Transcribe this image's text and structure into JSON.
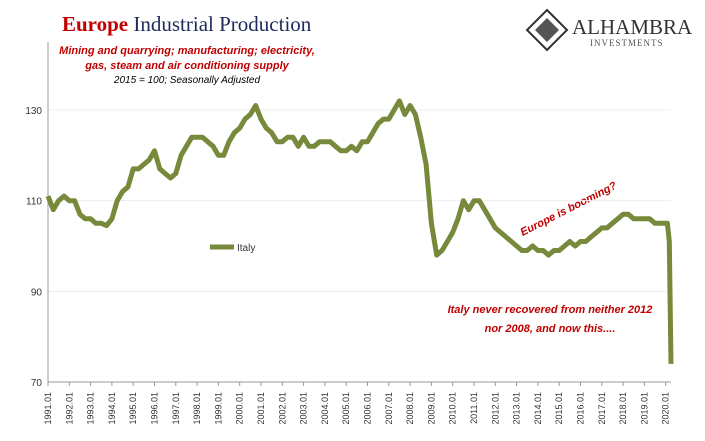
{
  "chart_data": {
    "type": "line",
    "title_highlight": "Europe",
    "title": "Industrial Production",
    "subtitle": [
      "Mining and quarrying; manufacturing; electricity,",
      "gas, steam and air conditioning supply"
    ],
    "note": "2015 = 100; Seasonally Adjusted",
    "logo": {
      "name": "ALHAMBRA",
      "tagline": "INVESTMENTS"
    },
    "annotations": [
      "Europe is booming?",
      "Italy never recovered from neither 2012",
      "nor 2008, and now this...."
    ],
    "x": [
      1991,
      1991.25,
      1991.5,
      1991.75,
      1992,
      1992.25,
      1992.5,
      1992.75,
      1993,
      1993.25,
      1993.5,
      1993.75,
      1994,
      1994.25,
      1994.5,
      1994.75,
      1995,
      1995.25,
      1995.5,
      1995.75,
      1996,
      1996.25,
      1996.5,
      1996.75,
      1997,
      1997.25,
      1997.5,
      1997.75,
      1998,
      1998.25,
      1998.5,
      1998.75,
      1999,
      1999.25,
      1999.5,
      1999.75,
      2000,
      2000.25,
      2000.5,
      2000.75,
      2001,
      2001.25,
      2001.5,
      2001.75,
      2002,
      2002.25,
      2002.5,
      2002.75,
      2003,
      2003.25,
      2003.5,
      2003.75,
      2004,
      2004.25,
      2004.5,
      2004.75,
      2005,
      2005.25,
      2005.5,
      2005.75,
      2006,
      2006.25,
      2006.5,
      2006.75,
      2007,
      2007.25,
      2007.5,
      2007.75,
      2008,
      2008.25,
      2008.5,
      2008.75,
      2009,
      2009.25,
      2009.5,
      2009.75,
      2010,
      2010.25,
      2010.5,
      2010.75,
      2011,
      2011.25,
      2011.5,
      2011.75,
      2012,
      2012.25,
      2012.5,
      2012.75,
      2013,
      2013.25,
      2013.5,
      2013.75,
      2014,
      2014.25,
      2014.5,
      2014.75,
      2015,
      2015.25,
      2015.5,
      2015.75,
      2016,
      2016.25,
      2016.5,
      2016.75,
      2017,
      2017.25,
      2017.5,
      2017.75,
      2018,
      2018.25,
      2018.5,
      2018.75,
      2019,
      2019.25,
      2019.5,
      2019.75,
      2020,
      2020.08,
      2020.17,
      2020.25
    ],
    "series": [
      {
        "name": "Italy",
        "color": "#77893a",
        "values": [
          111,
          108,
          110,
          111,
          110,
          110,
          107,
          106,
          106,
          105,
          105,
          104.5,
          106,
          110,
          112,
          113,
          117,
          117,
          118,
          119,
          121,
          117,
          116,
          115,
          116,
          120,
          122,
          124,
          124,
          124,
          123,
          122,
          120,
          120,
          123,
          125,
          126,
          128,
          129,
          131,
          128,
          126,
          125,
          123,
          123,
          124,
          124,
          122,
          124,
          122,
          122,
          123,
          123,
          123,
          122,
          121,
          121,
          122,
          121,
          123,
          123,
          125,
          127,
          128,
          128,
          130,
          132,
          129,
          131,
          129,
          124,
          118,
          105,
          98,
          99,
          101,
          103,
          106,
          110,
          108,
          110,
          110,
          108,
          106,
          104,
          103,
          102,
          101,
          100,
          99,
          99,
          100,
          99,
          99,
          98,
          99,
          99,
          100,
          101,
          100,
          101,
          101,
          102,
          103,
          104,
          104,
          105,
          106,
          107,
          107,
          106,
          106,
          106,
          106,
          105,
          105,
          105,
          105,
          101,
          74
        ]
      }
    ],
    "xlim": [
      1991,
      2020.25
    ],
    "xticks": [
      {
        "value": 1991,
        "label": "1991.01"
      },
      {
        "value": 1992,
        "label": "1992.01"
      },
      {
        "value": 1993,
        "label": "1993.01"
      },
      {
        "value": 1994,
        "label": "1994.01"
      },
      {
        "value": 1995,
        "label": "1995.01"
      },
      {
        "value": 1996,
        "label": "1996.01"
      },
      {
        "value": 1997,
        "label": "1997.01"
      },
      {
        "value": 1998,
        "label": "1998.01"
      },
      {
        "value": 1999,
        "label": "1999.01"
      },
      {
        "value": 2000,
        "label": "2000.01"
      },
      {
        "value": 2001,
        "label": "2001.01"
      },
      {
        "value": 2002,
        "label": "2002.01"
      },
      {
        "value": 2003,
        "label": "2003.01"
      },
      {
        "value": 2004,
        "label": "2004.01"
      },
      {
        "value": 2005,
        "label": "2005.01"
      },
      {
        "value": 2006,
        "label": "2006.01"
      },
      {
        "value": 2007,
        "label": "2007.01"
      },
      {
        "value": 2008,
        "label": "2008.01"
      },
      {
        "value": 2009,
        "label": "2009.01"
      },
      {
        "value": 2010,
        "label": "2010.01"
      },
      {
        "value": 2011,
        "label": "2011.01"
      },
      {
        "value": 2012,
        "label": "2012.01"
      },
      {
        "value": 2013,
        "label": "2013.01"
      },
      {
        "value": 2014,
        "label": "2014.01"
      },
      {
        "value": 2015,
        "label": "2015.01"
      },
      {
        "value": 2016,
        "label": "2016.01"
      },
      {
        "value": 2017,
        "label": "2017.01"
      },
      {
        "value": 2018,
        "label": "2018.01"
      },
      {
        "value": 2019,
        "label": "2019.01"
      },
      {
        "value": 2020,
        "label": "2020.01"
      }
    ],
    "ylim": [
      70,
      145
    ],
    "yticks": [
      70,
      90,
      110,
      130
    ],
    "grid": true
  }
}
